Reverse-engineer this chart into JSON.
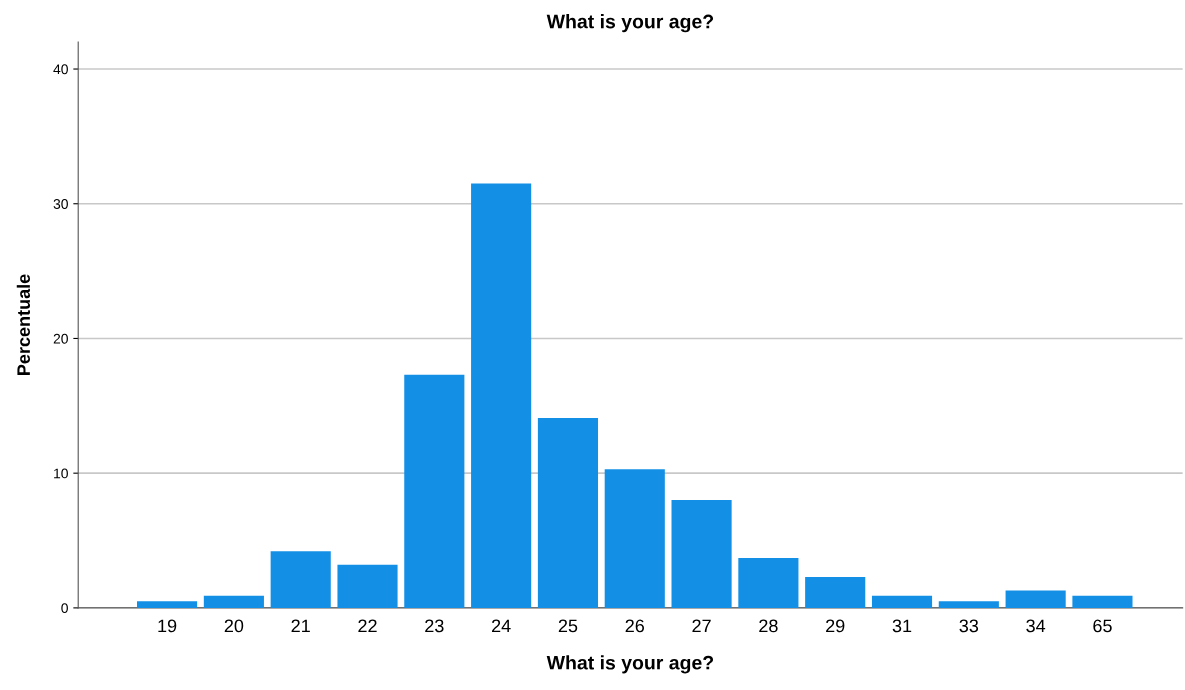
{
  "chart_data": {
    "type": "bar",
    "title": "What is your age?",
    "xlabel": "What is your age?",
    "ylabel": "Percentuale",
    "categories": [
      "19",
      "20",
      "21",
      "22",
      "23",
      "24",
      "25",
      "26",
      "27",
      "28",
      "29",
      "31",
      "33",
      "34",
      "65"
    ],
    "values": [
      0.5,
      0.9,
      4.2,
      3.2,
      17.3,
      31.5,
      14.1,
      10.3,
      8.0,
      3.7,
      2.3,
      0.9,
      0.5,
      1.3,
      0.9
    ],
    "color": "#1390e6",
    "ylim": [
      0,
      42
    ],
    "yticks": [
      0,
      10,
      20,
      30,
      40
    ],
    "grid": "y",
    "legend": false
  }
}
